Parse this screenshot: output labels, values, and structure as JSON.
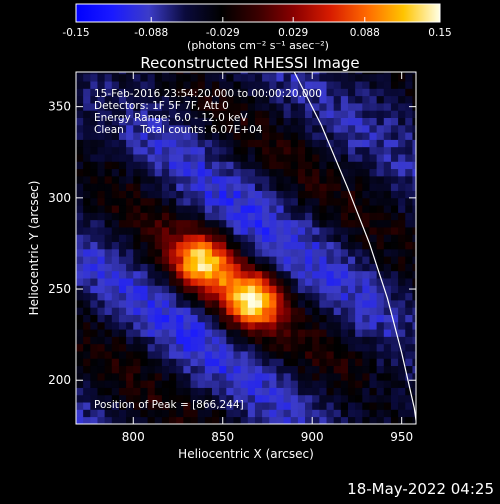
{
  "colorbar": {
    "ticks": [
      "-0.15",
      "-0.088",
      "-0.029",
      "0.029",
      "0.088",
      "0.15"
    ],
    "values": [
      -0.15,
      -0.088,
      -0.029,
      0.029,
      0.088,
      0.15
    ],
    "unit_label": "(photons cm⁻² s⁻¹ asec⁻²)",
    "colors": [
      "#0000ff",
      "#1a1aff",
      "#3c3cc8",
      "#0a0a3c",
      "#000000",
      "#3a0000",
      "#8b0000",
      "#d81c00",
      "#ff6a00",
      "#ffc400",
      "#ffffe6"
    ]
  },
  "chart_data": {
    "type": "heatmap",
    "title": "Reconstructed RHESSI Image",
    "xlabel": "Heliocentric X (arcsec)",
    "ylabel": "Heliocentric Y (arcsec)",
    "xlim": [
      768,
      958
    ],
    "ylim": [
      176,
      369
    ],
    "xticks": [
      800,
      850,
      900,
      950
    ],
    "yticks": [
      200,
      250,
      300,
      350
    ],
    "clim": [
      -0.15,
      0.15
    ],
    "limb_curve": [
      [
        890,
        369
      ],
      [
        905,
        340
      ],
      [
        920,
        305
      ],
      [
        932,
        275
      ],
      [
        942,
        245
      ],
      [
        950,
        215
      ],
      [
        957,
        185
      ],
      [
        958,
        178
      ]
    ],
    "sources": [
      {
        "x": 838,
        "y": 265,
        "peak": 0.135
      },
      {
        "x": 866,
        "y": 244,
        "peak": 0.15
      }
    ],
    "annotations": [
      "15-Feb-2016 23:54:20.000 to 00:00:20.000",
      "Detectors: 1F 5F 7F, Att 0",
      "Energy Range: 6.0 - 12.0 keV",
      "Clean     Total counts: 6.07E+04"
    ],
    "peak_label": "Position of Peak = [866,244]"
  },
  "footer": {
    "date": "18-May-2022 04:25"
  }
}
